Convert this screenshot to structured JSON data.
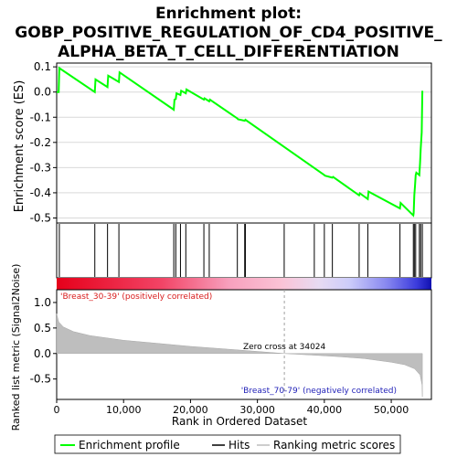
{
  "chart_data": {
    "type": "line",
    "title_lines": [
      "Enrichment plot:",
      "GOBP_POSITIVE_REGULATION_OF_CD4_POSITIVE_",
      "ALPHA_BETA_T_CELL_DIFFERENTIATION"
    ],
    "top_panel": {
      "ylabel": "Enrichment score (ES)",
      "ylim": [
        -0.52,
        0.115
      ],
      "yticks": [
        0.1,
        0.0,
        -0.1,
        -0.2,
        -0.3,
        -0.4,
        -0.5
      ],
      "ytick_labels": [
        "0.1",
        "0.0",
        "-0.1",
        "-0.2",
        "-0.3",
        "-0.4",
        "-0.5"
      ],
      "es_x": [
        0,
        300,
        400,
        5700,
        5800,
        7600,
        7700,
        9300,
        9400,
        17500,
        17600,
        17800,
        17900,
        18500,
        18600,
        19300,
        19400,
        22000,
        22100,
        22800,
        22900,
        27000,
        27100,
        28100,
        28200,
        40000,
        40100,
        41200,
        41300,
        45200,
        45300,
        46500,
        46600,
        51300,
        51400,
        53300,
        53350,
        53450,
        53550,
        53650,
        53750,
        54200,
        54300,
        54400,
        54550,
        54650
      ],
      "es_y": [
        0.0,
        0.0,
        0.095,
        0.0,
        0.05,
        0.02,
        0.065,
        0.04,
        0.078,
        -0.07,
        -0.03,
        -0.028,
        -0.005,
        -0.012,
        0.005,
        -0.005,
        0.01,
        -0.03,
        -0.025,
        -0.037,
        -0.03,
        -0.105,
        -0.108,
        -0.114,
        -0.11,
        -0.33,
        -0.332,
        -0.34,
        -0.337,
        -0.41,
        -0.402,
        -0.425,
        -0.395,
        -0.462,
        -0.44,
        -0.49,
        -0.48,
        -0.41,
        -0.37,
        -0.33,
        -0.32,
        -0.33,
        -0.28,
        -0.225,
        -0.16,
        0.005
      ],
      "hits": [
        400,
        5700,
        7600,
        9300,
        17500,
        17800,
        18500,
        19300,
        22000,
        22800,
        27000,
        28100,
        28200,
        34000,
        38500,
        40000,
        41200,
        45200,
        46500,
        51300,
        53300,
        53450,
        53650,
        54200,
        54400,
        54650
      ]
    },
    "bottom_panel": {
      "ylabel": "Ranked list metric (Signal2Noise)",
      "xlabel": "Rank in Ordered Dataset",
      "xlim": [
        0,
        56000
      ],
      "xticks": [
        0,
        10000,
        20000,
        30000,
        40000,
        50000
      ],
      "xtick_labels": [
        "0",
        "10,000",
        "20,000",
        "30,000",
        "40,000",
        "50,000"
      ],
      "ylim": [
        -0.9,
        1.25
      ],
      "yticks": [
        1.0,
        0.5,
        0.0,
        -0.5
      ],
      "ytick_labels": [
        "1.0",
        "0.5",
        "0.0",
        "-0.5"
      ],
      "metric_x": [
        0,
        300,
        1000,
        2500,
        5000,
        10000,
        15000,
        20000,
        25000,
        30000,
        34024,
        38000,
        42000,
        46000,
        50000,
        52000,
        53500,
        54300,
        54600,
        54650
      ],
      "metric_y": [
        0.78,
        0.62,
        0.52,
        0.43,
        0.35,
        0.26,
        0.2,
        0.14,
        0.09,
        0.04,
        0.0,
        -0.03,
        -0.06,
        -0.1,
        -0.17,
        -0.22,
        -0.3,
        -0.42,
        -0.62,
        -0.85
      ],
      "zero_cross_label": "Zero cross at 34024",
      "zero_cross_x": 34024,
      "pos_label": "'Breast_30-39' (positively correlated)",
      "neg_label": "'Breast_70-79' (negatively correlated)"
    },
    "legend": {
      "placement": "bottom",
      "entries": [
        "Enrichment profile",
        "Hits",
        "Ranking metric scores"
      ]
    },
    "colors": {
      "enrichment": "#00ff00",
      "hits": "#000000",
      "metric_fill": "#bebebe",
      "pos_text": "#d81b1b",
      "neg_text": "#2323b8",
      "zero_line": "#a0a0a0",
      "axis": "#000000"
    }
  }
}
